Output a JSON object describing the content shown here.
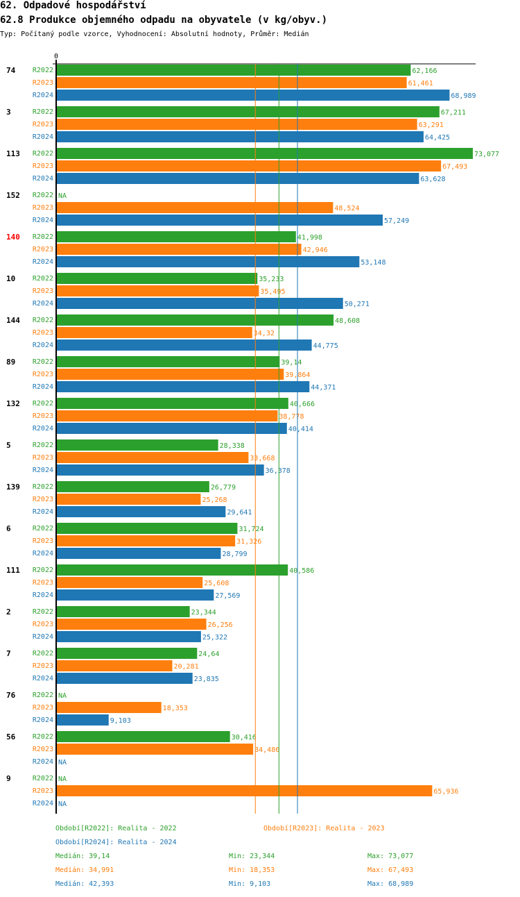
{
  "header": {
    "title": "62. Odpadové hospodářství",
    "subtitle": "62.8 Produkce objemného odpadu na obyvatele (v kg/obyv.)",
    "info": "Typ: Počítaný podle vzorce, Vyhodnocení: Absolutní hodnoty, Průměr: Medián"
  },
  "colors": {
    "R2022": "#2ca02c",
    "R2023": "#ff7f0e",
    "R2024": "#1f77b4",
    "highlight": "#ff0000"
  },
  "chart_data": {
    "type": "bar",
    "orientation": "horizontal",
    "title": "62.8 Produkce objemného odpadu na obyvatele (v kg/obyv.)",
    "xlabel": "",
    "ylabel": "",
    "x_tick_labels": [
      "0"
    ],
    "xlim": [
      0,
      75
    ],
    "series_names": [
      "R2022",
      "R2023",
      "R2024"
    ],
    "highlighted_category": "140",
    "categories": [
      "74",
      "3",
      "113",
      "152",
      "140",
      "10",
      "144",
      "89",
      "132",
      "5",
      "139",
      "6",
      "111",
      "2",
      "7",
      "76",
      "56",
      "9"
    ],
    "series": [
      {
        "name": "R2022",
        "values": [
          62.166,
          67.211,
          73.077,
          null,
          41.998,
          35.233,
          48.608,
          39.14,
          40.666,
          28.338,
          26.779,
          31.724,
          40.586,
          23.344,
          24.64,
          null,
          30.416,
          null
        ],
        "labels": [
          "62,166",
          "67,211",
          "73,077",
          "NA",
          "41,998",
          "35,233",
          "48,608",
          "39,14",
          "40,666",
          "28,338",
          "26,779",
          "31,724",
          "40,586",
          "23,344",
          "24,64",
          "NA",
          "30,416",
          "NA"
        ]
      },
      {
        "name": "R2023",
        "values": [
          61.461,
          63.291,
          67.493,
          48.524,
          42.946,
          35.495,
          34.32,
          39.864,
          38.778,
          33.668,
          25.268,
          31.326,
          25.608,
          26.256,
          20.281,
          18.353,
          34.486,
          65.936
        ],
        "labels": [
          "61,461",
          "63,291",
          "67,493",
          "48,524",
          "42,946",
          "35,495",
          "34,32",
          "39,864",
          "38,778",
          "33,668",
          "25,268",
          "31,326",
          "25,608",
          "26,256",
          "20,281",
          "18,353",
          "34,486",
          "65,936"
        ]
      },
      {
        "name": "R2024",
        "values": [
          68.989,
          64.425,
          63.628,
          57.249,
          53.148,
          50.271,
          44.775,
          44.371,
          40.414,
          36.378,
          29.641,
          28.799,
          27.569,
          25.322,
          23.835,
          9.103,
          null,
          null
        ],
        "labels": [
          "68,989",
          "64,425",
          "63,628",
          "57,249",
          "53,148",
          "50,271",
          "44,775",
          "44,371",
          "40,414",
          "36,378",
          "29,641",
          "28,799",
          "27,569",
          "25,322",
          "23,835",
          "9,103",
          "NA",
          "NA"
        ]
      }
    ],
    "reference_lines": [
      {
        "series": "R2023",
        "label": "Medián",
        "value": 34.991
      },
      {
        "series": "R2022",
        "label": "Medián",
        "value": 39.14
      },
      {
        "series": "R2024",
        "label": "Medián",
        "value": 42.393
      }
    ],
    "legend": [
      {
        "series": "R2022",
        "text": "Období[R2022]: Realita - 2022"
      },
      {
        "series": "R2023",
        "text": "Období[R2023]: Realita - 2023"
      },
      {
        "series": "R2024",
        "text": "Období[R2024]: Realita - 2024"
      }
    ],
    "stats": [
      {
        "series": "R2022",
        "median": "Medián: 39,14",
        "min": "Min: 23,344",
        "max": "Max: 73,077"
      },
      {
        "series": "R2023",
        "median": "Medián: 34,991",
        "min": "Min: 18,353",
        "max": "Max: 67,493"
      },
      {
        "series": "R2024",
        "median": "Medián: 42,393",
        "min": "Min: 9,103",
        "max": "Max: 68,989"
      }
    ]
  }
}
